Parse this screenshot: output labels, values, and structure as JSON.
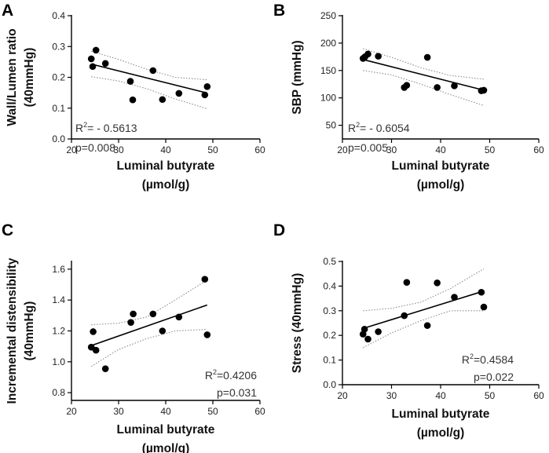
{
  "chart_data": [
    {
      "type": "scatter",
      "panel": "A",
      "xlabel": [
        "Luminal butyrate",
        "(µmol/g)"
      ],
      "ylabel": [
        "Wall/Lumen ratio",
        "(40mmHg)"
      ],
      "xlim": [
        20,
        60
      ],
      "ylim": [
        0.0,
        0.4
      ],
      "xticks": [
        20,
        30,
        40,
        50,
        60
      ],
      "yticks": [
        "0.0",
        "0.1",
        "0.2",
        "0.3",
        "0.4"
      ],
      "r2_prefix": "R",
      "r2_sup": "2",
      "r2_value": "= - 0.5613",
      "p_text": "p=0.008",
      "stats_position": "bottom-left",
      "points": [
        {
          "x": 24.2,
          "y": 0.26
        },
        {
          "x": 24.5,
          "y": 0.235
        },
        {
          "x": 25.2,
          "y": 0.288
        },
        {
          "x": 27.2,
          "y": 0.245
        },
        {
          "x": 32.5,
          "y": 0.187
        },
        {
          "x": 33.0,
          "y": 0.127
        },
        {
          "x": 37.3,
          "y": 0.222
        },
        {
          "x": 39.3,
          "y": 0.128
        },
        {
          "x": 42.8,
          "y": 0.148
        },
        {
          "x": 48.3,
          "y": 0.143
        },
        {
          "x": 48.8,
          "y": 0.17
        }
      ],
      "fit": {
        "x0": 24.2,
        "y0": 0.243,
        "x1": 48.8,
        "y1": 0.149
      },
      "ci_upper": [
        [
          24.2,
          0.285
        ],
        [
          30,
          0.258
        ],
        [
          36,
          0.226
        ],
        [
          42,
          0.2
        ],
        [
          48.8,
          0.192
        ]
      ],
      "ci_lower": [
        [
          24.2,
          0.202
        ],
        [
          30,
          0.188
        ],
        [
          36,
          0.163
        ],
        [
          42,
          0.13
        ],
        [
          48.8,
          0.098
        ]
      ]
    },
    {
      "type": "scatter",
      "panel": "B",
      "xlabel": [
        "Luminal butyrate",
        "(µmol/g)"
      ],
      "ylabel": [
        "SBP (mmHg)"
      ],
      "xlim": [
        20,
        60
      ],
      "ylim": [
        25,
        250
      ],
      "xticks": [
        20,
        30,
        40,
        50,
        60
      ],
      "yticks": [
        "50",
        "100",
        "150",
        "200",
        "250"
      ],
      "r2_prefix": "R",
      "r2_sup": "2",
      "r2_value": "= - 0.6054",
      "p_text": "p=0.005",
      "stats_position": "bottom-left",
      "points": [
        {
          "x": 24.2,
          "y": 172
        },
        {
          "x": 24.6,
          "y": 175
        },
        {
          "x": 25.2,
          "y": 180
        },
        {
          "x": 27.3,
          "y": 176
        },
        {
          "x": 32.6,
          "y": 119
        },
        {
          "x": 33.1,
          "y": 123
        },
        {
          "x": 37.3,
          "y": 174
        },
        {
          "x": 39.3,
          "y": 119
        },
        {
          "x": 42.8,
          "y": 122
        },
        {
          "x": 48.3,
          "y": 113
        },
        {
          "x": 48.8,
          "y": 114
        }
      ],
      "fit": {
        "x0": 24.2,
        "y0": 170,
        "x1": 48.8,
        "y1": 114
      },
      "ci_upper": [
        [
          24.2,
          190
        ],
        [
          30,
          174
        ],
        [
          36,
          155
        ],
        [
          42,
          141
        ],
        [
          48.8,
          134
        ]
      ],
      "ci_lower": [
        [
          24.2,
          150
        ],
        [
          30,
          142
        ],
        [
          36,
          125
        ],
        [
          42,
          106
        ],
        [
          48.8,
          86
        ]
      ]
    },
    {
      "type": "scatter",
      "panel": "C",
      "xlabel": [
        "Luminal butyrate",
        "(µmol/g)"
      ],
      "ylabel": [
        "Incremental distensibility",
        "(40mmHg)"
      ],
      "xlim": [
        20,
        60
      ],
      "ylim": [
        0.75,
        1.65
      ],
      "xticks": [
        20,
        30,
        40,
        50,
        60
      ],
      "yticks": [
        "0.8",
        "1.0",
        "1.2",
        "1.4",
        "1.6"
      ],
      "r2_prefix": "R",
      "r2_sup": "2",
      "r2_value": "=0.4206",
      "p_text": "p=0.031",
      "stats_position": "bottom-right",
      "points": [
        {
          "x": 24.2,
          "y": 1.095
        },
        {
          "x": 24.6,
          "y": 1.195
        },
        {
          "x": 25.2,
          "y": 1.075
        },
        {
          "x": 27.2,
          "y": 0.955
        },
        {
          "x": 32.6,
          "y": 1.255
        },
        {
          "x": 33.1,
          "y": 1.31
        },
        {
          "x": 37.3,
          "y": 1.31
        },
        {
          "x": 39.3,
          "y": 1.2
        },
        {
          "x": 42.8,
          "y": 1.29
        },
        {
          "x": 48.3,
          "y": 1.535
        },
        {
          "x": 48.8,
          "y": 1.175
        }
      ],
      "fit": {
        "x0": 24.2,
        "y0": 1.105,
        "x1": 48.8,
        "y1": 1.368
      },
      "ci_upper": [
        [
          24.2,
          1.24
        ],
        [
          30,
          1.25
        ],
        [
          36,
          1.29
        ],
        [
          42,
          1.4
        ],
        [
          48.8,
          1.53
        ]
      ],
      "ci_lower": [
        [
          24.2,
          0.97
        ],
        [
          30,
          1.08
        ],
        [
          36,
          1.15
        ],
        [
          42,
          1.2
        ],
        [
          48.8,
          1.21
        ]
      ]
    },
    {
      "type": "scatter",
      "panel": "D",
      "xlabel": [
        "Luminal butyrate",
        "(µmol/g)"
      ],
      "ylabel": [
        "Stress (40mmHg)"
      ],
      "xlim": [
        20,
        60
      ],
      "ylim": [
        0.0,
        0.5
      ],
      "xticks": [
        20,
        30,
        40,
        50,
        60
      ],
      "yticks": [
        "0.0",
        "0.1",
        "0.2",
        "0.3",
        "0.4",
        "0.5"
      ],
      "r2_prefix": "R",
      "r2_sup": "2",
      "r2_value": "=0.4584",
      "p_text": "p=0.022",
      "stats_position": "bottom-right",
      "points": [
        {
          "x": 24.2,
          "y": 0.205
        },
        {
          "x": 24.5,
          "y": 0.225
        },
        {
          "x": 25.2,
          "y": 0.185
        },
        {
          "x": 27.3,
          "y": 0.215
        },
        {
          "x": 32.6,
          "y": 0.28
        },
        {
          "x": 33.1,
          "y": 0.415
        },
        {
          "x": 37.3,
          "y": 0.24
        },
        {
          "x": 39.3,
          "y": 0.413
        },
        {
          "x": 42.8,
          "y": 0.355
        },
        {
          "x": 48.3,
          "y": 0.375
        },
        {
          "x": 48.8,
          "y": 0.315
        }
      ],
      "fit": {
        "x0": 24.2,
        "y0": 0.228,
        "x1": 48.8,
        "y1": 0.38
      },
      "ci_upper": [
        [
          24.2,
          0.3
        ],
        [
          30,
          0.31
        ],
        [
          36,
          0.335
        ],
        [
          42,
          0.39
        ],
        [
          48.8,
          0.47
        ]
      ],
      "ci_lower": [
        [
          24.2,
          0.15
        ],
        [
          30,
          0.21
        ],
        [
          36,
          0.26
        ],
        [
          42,
          0.3
        ],
        [
          48.8,
          0.3
        ]
      ]
    }
  ],
  "colors": {
    "points": "#000000",
    "fit_line": "#000000",
    "ci_line": "#8c8c8c",
    "axis": "#000000",
    "text": "#222222"
  }
}
